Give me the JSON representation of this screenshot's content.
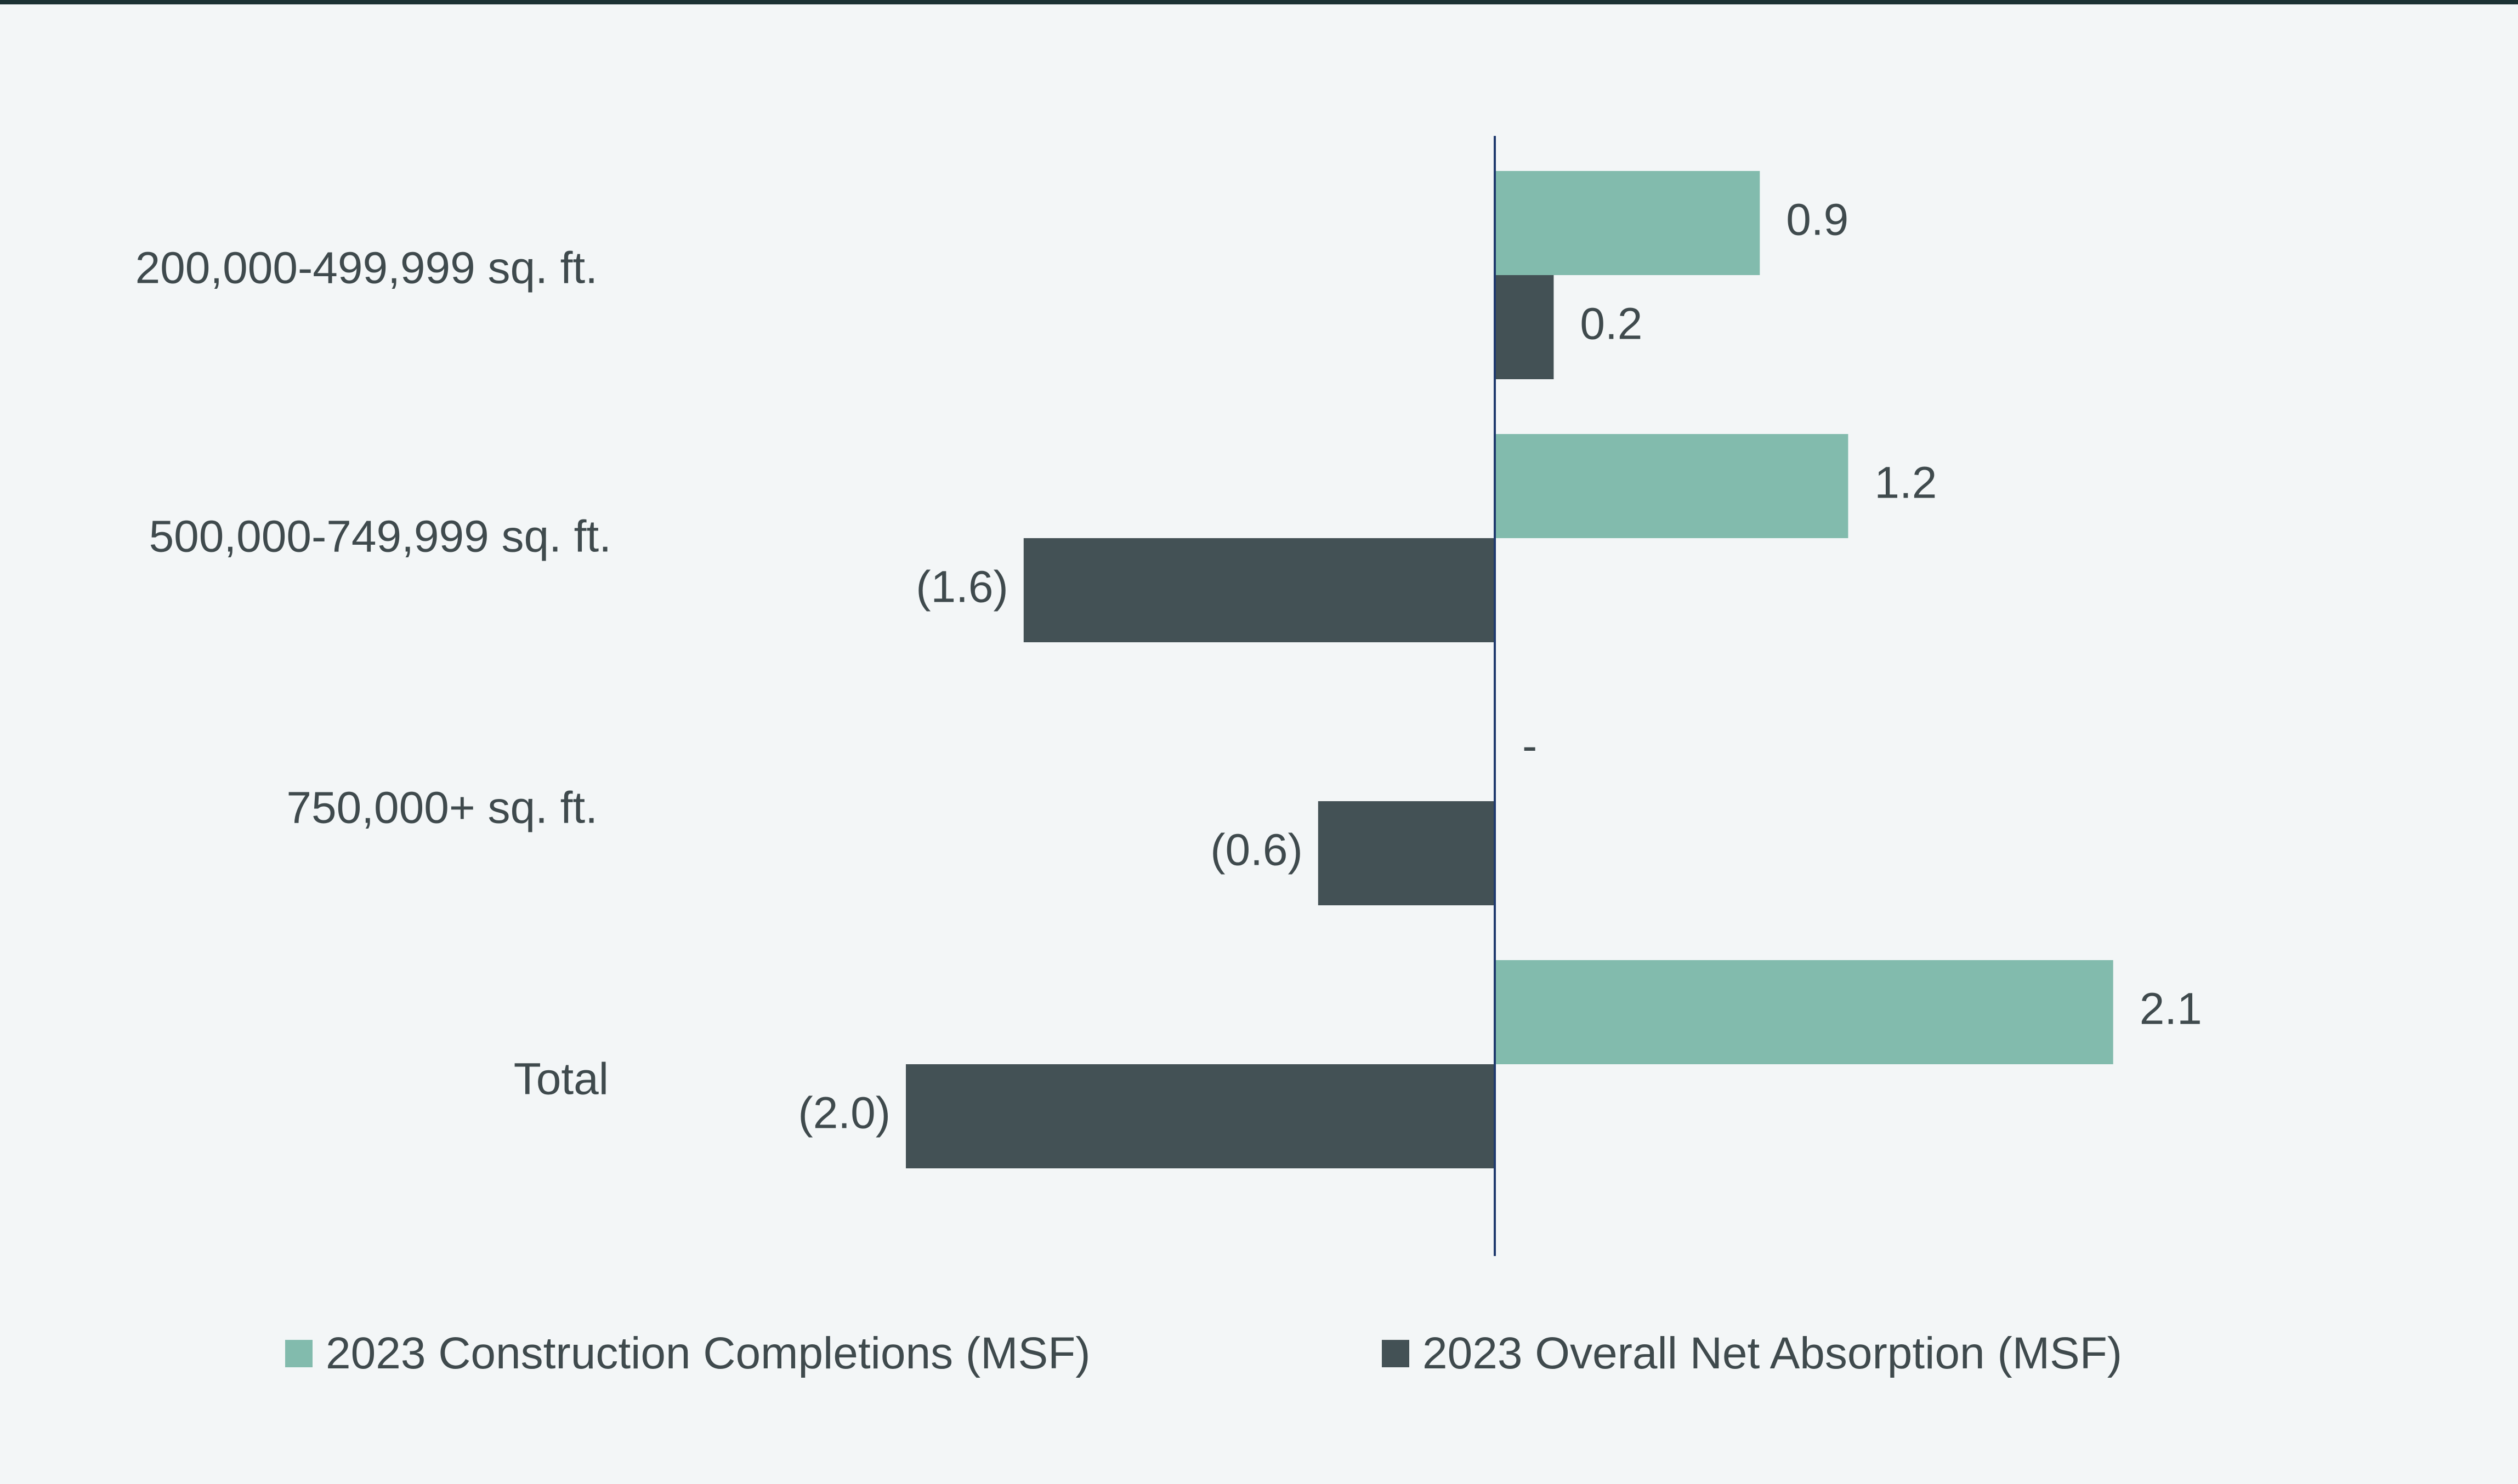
{
  "chart_data": {
    "type": "bar",
    "orientation": "horizontal",
    "categories": [
      "200,000-499,999 sq. ft.",
      "500,000-749,999 sq. ft.",
      "750,000+ sq. ft.",
      "Total"
    ],
    "series": [
      {
        "name": "2023 Construction Completions (MSF)",
        "color": "#82bbad",
        "values": [
          0.9,
          1.2,
          0,
          2.1
        ],
        "labels": [
          "0.9",
          "1.2",
          "-",
          "2.1"
        ]
      },
      {
        "name": "2023 Overall Net Absorption (MSF)",
        "color": "#435155",
        "values": [
          0.2,
          -1.6,
          -0.6,
          -2.0
        ],
        "labels": [
          "0.2",
          "(1.6)",
          "(0.6)",
          "(2.0)"
        ]
      }
    ],
    "title": "",
    "xlabel": "",
    "ylabel": "",
    "legend_position": "bottom",
    "grid": false,
    "axis_color": "#1f3a6e"
  }
}
